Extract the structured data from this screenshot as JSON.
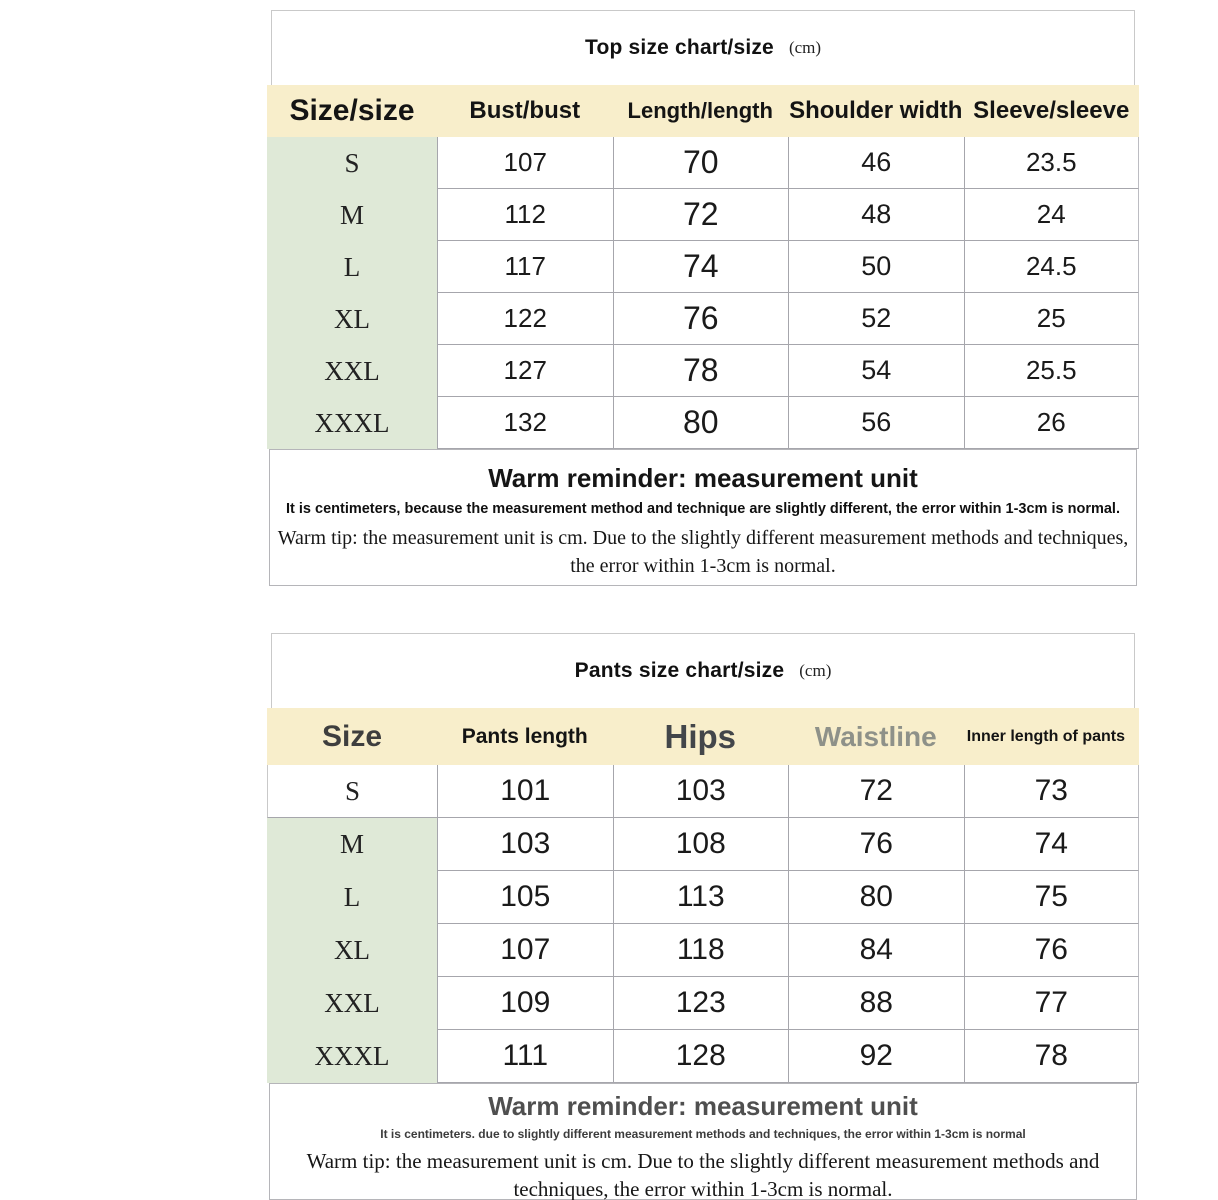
{
  "colors": {
    "background": "#ffffff",
    "header_band": "#f8eecb",
    "size_column": "#dfe9d7",
    "grid_line": "#a6a6ac",
    "box_border": "#c9c9c9",
    "waistline_header_text": "#8e9189",
    "pants_reminder_title_text": "#4f4f4f"
  },
  "chart_data": [
    {
      "type": "table",
      "title": "Top size chart/size",
      "unit": "(cm)",
      "columns": [
        "Size/size",
        "Bust/bust",
        "Length/length",
        "Shoulder width",
        "Sleeve/sleeve"
      ],
      "rows": [
        [
          "S",
          "107",
          "70",
          "46",
          "23.5"
        ],
        [
          "M",
          "112",
          "72",
          "48",
          "24"
        ],
        [
          "L",
          "117",
          "74",
          "50",
          "24.5"
        ],
        [
          "XL",
          "122",
          "76",
          "52",
          "25"
        ],
        [
          "XXL",
          "127",
          "78",
          "54",
          "25.5"
        ],
        [
          "XXXL",
          "132",
          "80",
          "56",
          "26"
        ]
      ],
      "reminder": {
        "title": "Warm reminder: measurement unit",
        "note": "It is centimeters, because the measurement method and technique are slightly different, the error within 1-3cm is normal.",
        "tip": "Warm tip: the measurement unit is cm. Due to the slightly different measurement methods and techniques, the error within 1-3cm is normal."
      }
    },
    {
      "type": "table",
      "title": "Pants size chart/size",
      "unit": "(cm)",
      "columns": [
        "Size",
        "Pants length",
        "Hips",
        "Waistline",
        "Inner length of pants"
      ],
      "rows": [
        [
          "S",
          "101",
          "103",
          "72",
          "73"
        ],
        [
          "M",
          "103",
          "108",
          "76",
          "74"
        ],
        [
          "L",
          "105",
          "113",
          "80",
          "75"
        ],
        [
          "XL",
          "107",
          "118",
          "84",
          "76"
        ],
        [
          "XXL",
          "109",
          "123",
          "88",
          "77"
        ],
        [
          "XXXL",
          "111",
          "128",
          "92",
          "78"
        ]
      ],
      "reminder": {
        "title": "Warm reminder: measurement unit",
        "note": "It is centimeters. due to slightly different measurement methods and techniques, the error within 1-3cm is normal",
        "tip": "Warm tip: the measurement unit is cm. Due to the slightly different measurement methods and techniques, the error within 1-3cm is normal."
      }
    }
  ]
}
